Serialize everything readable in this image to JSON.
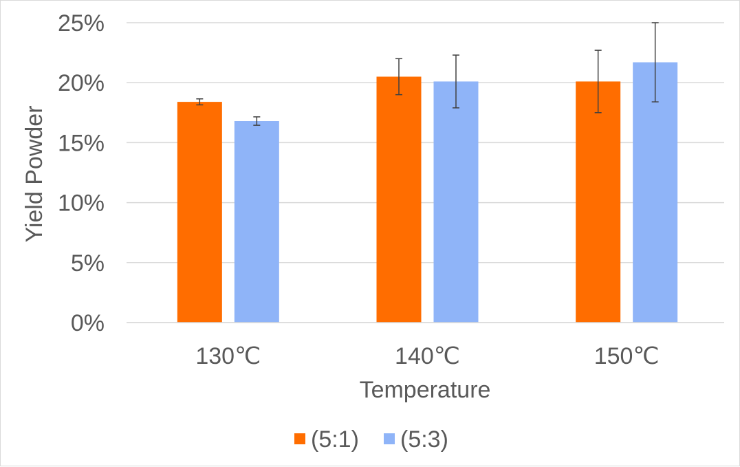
{
  "chart_data": {
    "type": "bar",
    "xlabel": "Temperature",
    "ylabel": "Yield Powder",
    "categories": [
      "130℃",
      "140℃",
      "150℃"
    ],
    "ylim": [
      0,
      25
    ],
    "yticks": [
      0,
      5,
      10,
      15,
      20,
      25
    ],
    "ytick_labels": [
      "0%",
      "5%",
      "10%",
      "15%",
      "20%",
      "25%"
    ],
    "grid": true,
    "legend": "bottom",
    "error_bars": true,
    "series": [
      {
        "name": "(5:1)",
        "color": "#ff6d00",
        "values": [
          18.4,
          20.5,
          20.1
        ],
        "errors": [
          0.25,
          1.5,
          2.6
        ]
      },
      {
        "name": "(5:3)",
        "color": "#8fb4f8",
        "values": [
          16.8,
          20.1,
          21.7
        ],
        "errors": [
          0.35,
          2.2,
          3.3
        ]
      }
    ]
  }
}
